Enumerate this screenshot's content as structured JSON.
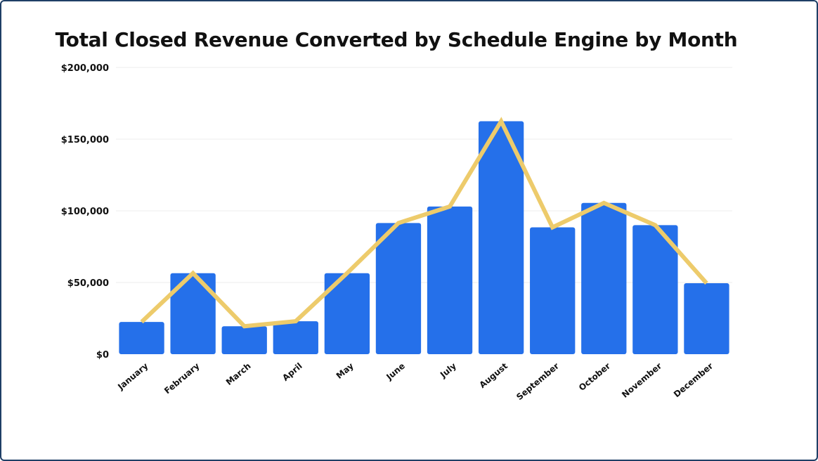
{
  "chart_data": {
    "type": "bar",
    "title": "Total Closed Revenue Converted by Schedule Engine by Month",
    "xlabel": "",
    "ylabel": "",
    "ylim": [
      0,
      200000
    ],
    "yticks": [
      0,
      50000,
      100000,
      150000,
      200000
    ],
    "ytick_labels": [
      "$0",
      "$50,000",
      "$100,000",
      "$150,000",
      "$200,000"
    ],
    "categories": [
      "January",
      "February",
      "March",
      "April",
      "May",
      "June",
      "July",
      "August",
      "September",
      "October",
      "November",
      "December"
    ],
    "series": [
      {
        "kind": "bar",
        "color": "#2570ea",
        "values": [
          22500,
          56500,
          19500,
          23000,
          56500,
          91500,
          103000,
          162500,
          88500,
          105500,
          90000,
          49500
        ]
      },
      {
        "kind": "line",
        "color": "#edcb6b",
        "values": [
          22500,
          56500,
          19500,
          23000,
          56500,
          91500,
          103000,
          162500,
          88500,
          105500,
          90000,
          49500
        ]
      }
    ],
    "grid": true,
    "legend": "none"
  }
}
